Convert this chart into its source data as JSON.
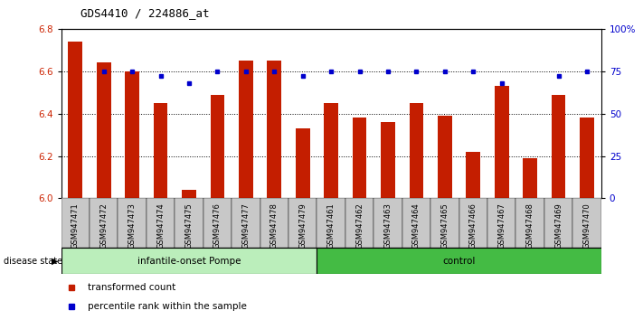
{
  "title": "GDS4410 / 224886_at",
  "samples": [
    "GSM947471",
    "GSM947472",
    "GSM947473",
    "GSM947474",
    "GSM947475",
    "GSM947476",
    "GSM947477",
    "GSM947478",
    "GSM947479",
    "GSM947461",
    "GSM947462",
    "GSM947463",
    "GSM947464",
    "GSM947465",
    "GSM947466",
    "GSM947467",
    "GSM947468",
    "GSM947469",
    "GSM947470"
  ],
  "red_values": [
    6.74,
    6.64,
    6.6,
    6.45,
    6.04,
    6.49,
    6.65,
    6.65,
    6.33,
    6.45,
    6.38,
    6.36,
    6.45,
    6.39,
    6.22,
    6.53,
    6.19,
    6.49,
    6.38
  ],
  "blue_values": [
    null,
    75,
    75,
    72,
    68,
    75,
    75,
    75,
    72,
    75,
    75,
    75,
    75,
    75,
    75,
    68,
    null,
    72,
    75
  ],
  "left_ylim": [
    6.0,
    6.8
  ],
  "right_ylim": [
    0,
    100
  ],
  "left_yticks": [
    6.0,
    6.2,
    6.4,
    6.6,
    6.8
  ],
  "right_yticks": [
    0,
    25,
    50,
    75,
    100
  ],
  "right_yticklabels": [
    "0",
    "25",
    "50",
    "75",
    "100%"
  ],
  "group1_label": "infantile-onset Pompe",
  "group2_label": "control",
  "group1_count": 9,
  "group2_count": 10,
  "disease_state_label": "disease state",
  "legend_red": "transformed count",
  "legend_blue": "percentile rank within the sample",
  "bar_color": "#C41E00",
  "blue_color": "#0000CC",
  "group1_bg": "#BBEEBB",
  "group2_bg": "#44BB44",
  "tick_bg": "#C8C8C8",
  "bar_width": 0.5,
  "bar_bottom": 6.0,
  "grid_lines": [
    6.2,
    6.4,
    6.6
  ]
}
